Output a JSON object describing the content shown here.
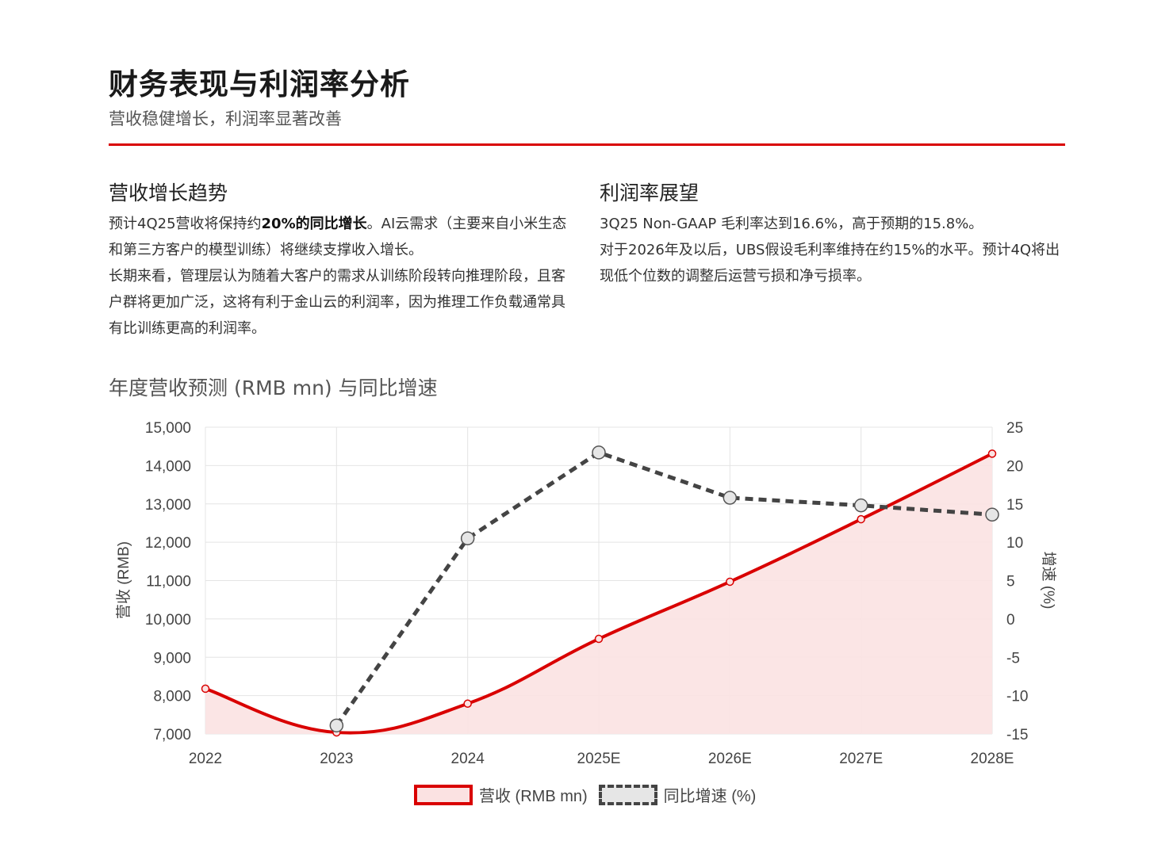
{
  "header": {
    "title": "财务表现与利润率分析",
    "subtitle": "营收稳健增长，利润率显著改善",
    "accent_color": "#d90000"
  },
  "left": {
    "heading": "营收增长趋势",
    "p1_pre": "预计4Q25营收将保持约",
    "p1_bold": "20%的同比增长",
    "p1_post": "。AI云需求（主要来自小米生态和第三方客户的模型训练）将继续支撑收入增长。",
    "p2": "长期来看，管理层认为随着大客户的需求从训练阶段转向推理阶段，且客户群将更加广泛，这将有利于金山云的利润率，因为推理工作负载通常具有比训练更高的利润率。"
  },
  "right": {
    "heading": "利润率展望",
    "p1": "3Q25 Non-GAAP 毛利率达到16.6%，高于预期的15.8%。",
    "p2": "对于2026年及以后，UBS假设毛利率维持在约15%的水平。预计4Q将出现低个位数的调整后运营亏损和净亏损率。"
  },
  "chart_data": {
    "type": "line",
    "title": "年度营收预测 (RMB mn) 与同比增速",
    "categories": [
      "2022",
      "2023",
      "2024",
      "2025E",
      "2026E",
      "2027E",
      "2028E"
    ],
    "ylabel": "营收 (RMB)",
    "y2label": "增速 (%)",
    "ylim": [
      7000,
      15000
    ],
    "y2lim": [
      -15,
      25
    ],
    "yticks": [
      "15,000",
      "14,000",
      "13,000",
      "12,000",
      "11,000",
      "10,000",
      "9,000",
      "8,000",
      "7,000"
    ],
    "y2ticks": [
      "25",
      "20",
      "15",
      "10",
      "5",
      "0",
      "-5",
      "-10",
      "-15"
    ],
    "grid": true,
    "legend": "bottom",
    "series": [
      {
        "name": "营收 (RMB mn)",
        "axis": "left",
        "color": "#d90000",
        "fill": "#fbe2e2",
        "values": [
          8180,
          7040,
          7790,
          9480,
          10970,
          12600,
          14310
        ]
      },
      {
        "name": "同比增速 (%)",
        "axis": "right",
        "color": "#444444",
        "dashed": true,
        "values": [
          null,
          -13.9,
          10.5,
          21.7,
          15.8,
          14.8,
          13.6
        ]
      }
    ]
  }
}
